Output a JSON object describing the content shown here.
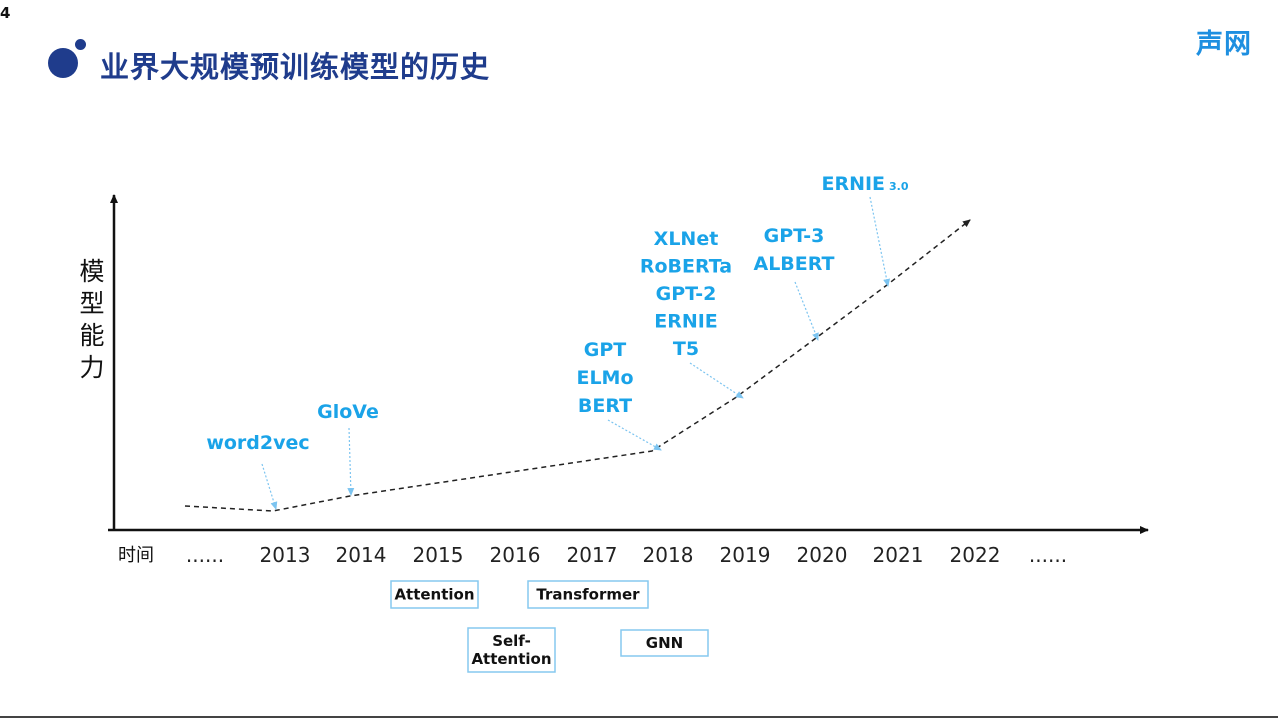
{
  "slide_number": "4",
  "title": "业界大规模预训练模型的历史",
  "brand": "声网",
  "axes": {
    "y_label": "模型能力",
    "x_label": "时间",
    "ticks": [
      "......",
      "2013",
      "2014",
      "2015",
      "2016",
      "2017",
      "2018",
      "2019",
      "2020",
      "2021",
      "2022",
      "......"
    ]
  },
  "model_groups": [
    {
      "year": "2013",
      "lines": [
        "word2vec"
      ]
    },
    {
      "year": "2014",
      "lines": [
        "GloVe"
      ]
    },
    {
      "year": "2018",
      "lines": [
        "GPT",
        "ELMo",
        "BERT"
      ]
    },
    {
      "year": "2019",
      "lines": [
        "XLNet",
        "RoBERTa",
        "GPT-2",
        "ERNIE",
        "T5"
      ]
    },
    {
      "year": "2020",
      "lines": [
        "GPT-3",
        "ALBERT"
      ]
    },
    {
      "year": "2021",
      "lines": [
        "ERNIE"
      ],
      "suffix": "3.0"
    }
  ],
  "techniques": [
    {
      "lines": [
        "Attention"
      ]
    },
    {
      "lines": [
        "Transformer"
      ]
    },
    {
      "lines": [
        "Self-",
        "Attention"
      ]
    },
    {
      "lines": [
        "GNN"
      ]
    }
  ],
  "colors": {
    "title": "#1f3c8c",
    "brand": "#1e8fe0",
    "model_text": "#1aa3e8",
    "pointer": "#7cc4f0",
    "box_border": "#86c9ef"
  }
}
